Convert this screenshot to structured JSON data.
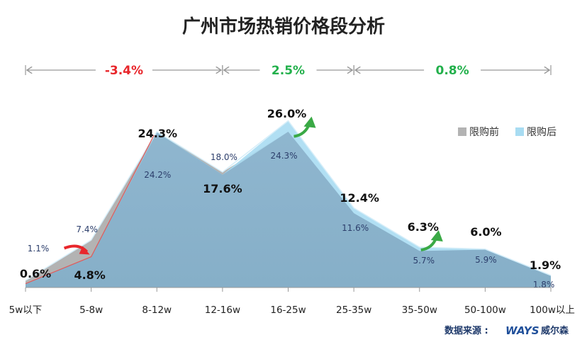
{
  "chart_data": {
    "type": "area",
    "title": "广州市场热销价格段分析",
    "categories": [
      "5w以下",
      "5-8w",
      "8-12w",
      "12-16w",
      "16-25w",
      "25-35w",
      "35-50w",
      "50-100w",
      "100w以上"
    ],
    "ylim": [
      0,
      30
    ],
    "legend_position": "right",
    "series": [
      {
        "name": "限购前",
        "color": "#b3b3b3",
        "values": [
          1.1,
          7.4,
          24.2,
          18.0,
          24.3,
          11.6,
          5.7,
          5.9,
          1.8
        ]
      },
      {
        "name": "限购后",
        "color": "#a8dcf2",
        "values": [
          0.6,
          4.8,
          24.3,
          17.6,
          26.0,
          12.4,
          6.3,
          6.0,
          1.9
        ]
      }
    ],
    "data_labels": {
      "before": [
        "1.1%",
        "7.4%",
        "24.2%",
        "18.0%",
        "24.3%",
        "11.6%",
        "5.7%",
        "5.9%",
        "1.8%"
      ],
      "after": [
        "0.6%",
        "4.8%",
        "24.3%",
        "17.6%",
        "26.0%",
        "12.4%",
        "6.3%",
        "6.0%",
        "1.9%"
      ]
    },
    "annotations": [
      {
        "from": "5w以下",
        "to": "12-16w",
        "text": "-3.4%",
        "color": "#e8262b"
      },
      {
        "from": "12-16w",
        "to": "25-35w",
        "text": "2.5%",
        "color": "#22b04b"
      },
      {
        "from": "25-35w",
        "to": "100w以上",
        "text": "0.8%",
        "color": "#22b04b"
      }
    ],
    "grid": false
  },
  "footer": {
    "source_label": "数据来源 :",
    "brand_logo": "WAYS",
    "brand_name": "威尔森"
  }
}
